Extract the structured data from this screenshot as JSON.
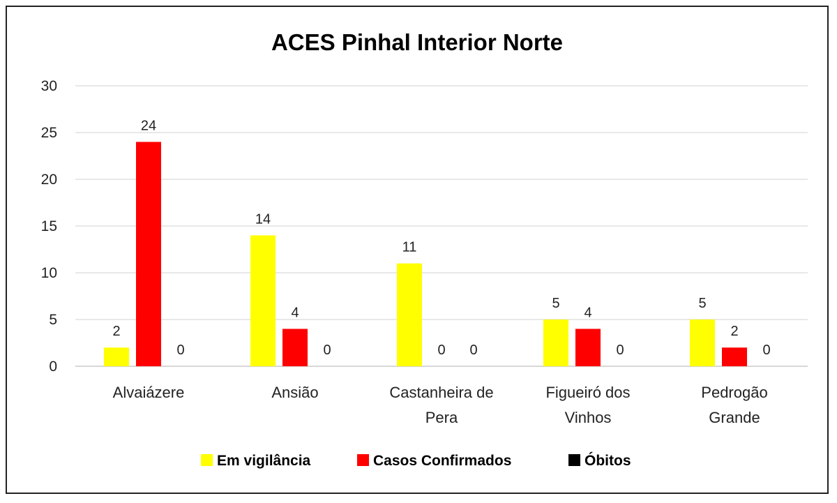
{
  "chart_data": {
    "type": "bar",
    "title": "ACES Pinhal Interior Norte",
    "categories": [
      [
        "Alvaiázere"
      ],
      [
        "Ansião"
      ],
      [
        "Castanheira de",
        "Pera"
      ],
      [
        "Figueiró dos",
        "Vinhos"
      ],
      [
        "Pedrogão",
        "Grande"
      ]
    ],
    "series": [
      {
        "name": "Em vigilância",
        "color": "#ffff00",
        "values": [
          2,
          14,
          11,
          5,
          5
        ]
      },
      {
        "name": "Casos Confirmados",
        "color": "#ff0000",
        "values": [
          24,
          4,
          0,
          4,
          2
        ]
      },
      {
        "name": "Óbitos",
        "color": "#000000",
        "values": [
          0,
          0,
          0,
          0,
          0
        ]
      }
    ],
    "ylim": [
      0,
      30
    ],
    "yticks": [
      0,
      5,
      10,
      15,
      20,
      25,
      30
    ],
    "grid": true,
    "legend_position": "bottom",
    "data_labels": true
  }
}
